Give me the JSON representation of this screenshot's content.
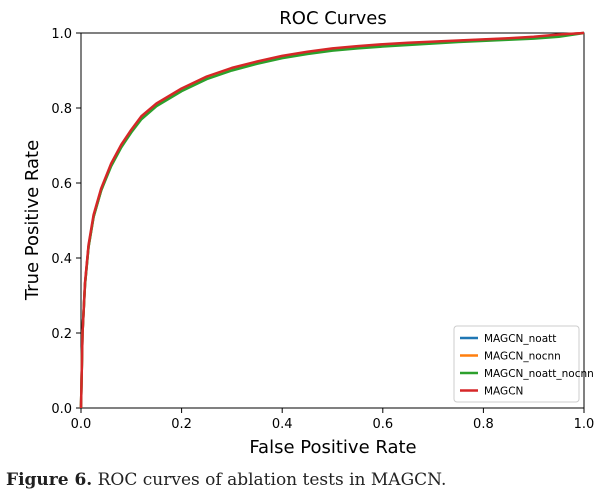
{
  "chart_data": {
    "type": "line",
    "title": "ROC Curves",
    "xlabel": "False Positive Rate",
    "ylabel": "True Positive Rate",
    "xlim": [
      0.0,
      1.0
    ],
    "ylim": [
      0.0,
      1.0
    ],
    "xticks": [
      "0.0",
      "0.2",
      "0.4",
      "0.6",
      "0.8",
      "1.0"
    ],
    "yticks": [
      "0.0",
      "0.2",
      "0.4",
      "0.6",
      "0.8",
      "1.0"
    ],
    "grid": false,
    "legend_position": "bottom-right",
    "series": [
      {
        "name": "MAGCN_noatt",
        "color": "#1f77b4",
        "x": [
          0,
          0.003,
          0.008,
          0.015,
          0.025,
          0.04,
          0.06,
          0.08,
          0.1,
          0.12,
          0.15,
          0.2,
          0.25,
          0.3,
          0.35,
          0.4,
          0.45,
          0.5,
          0.55,
          0.6,
          0.65,
          0.7,
          0.75,
          0.8,
          0.85,
          0.9,
          0.95,
          1.0
        ],
        "y": [
          0,
          0.2,
          0.33,
          0.43,
          0.51,
          0.58,
          0.65,
          0.7,
          0.74,
          0.775,
          0.81,
          0.85,
          0.882,
          0.905,
          0.922,
          0.937,
          0.948,
          0.957,
          0.963,
          0.968,
          0.972,
          0.976,
          0.979,
          0.982,
          0.985,
          0.989,
          0.995,
          1.0
        ]
      },
      {
        "name": "MAGCN_nocnn",
        "color": "#ff7f0e",
        "x": [
          0,
          0.003,
          0.008,
          0.015,
          0.025,
          0.04,
          0.06,
          0.08,
          0.1,
          0.12,
          0.15,
          0.2,
          0.25,
          0.3,
          0.35,
          0.4,
          0.45,
          0.5,
          0.55,
          0.6,
          0.65,
          0.7,
          0.75,
          0.8,
          0.85,
          0.9,
          0.95,
          1.0
        ],
        "y": [
          0,
          0.2,
          0.33,
          0.43,
          0.51,
          0.58,
          0.65,
          0.7,
          0.74,
          0.775,
          0.81,
          0.85,
          0.882,
          0.905,
          0.922,
          0.937,
          0.948,
          0.957,
          0.963,
          0.968,
          0.972,
          0.976,
          0.979,
          0.982,
          0.985,
          0.989,
          0.995,
          1.0
        ]
      },
      {
        "name": "MAGCN_noatt_nocnn",
        "color": "#2ca02c",
        "x": [
          0,
          0.003,
          0.008,
          0.015,
          0.025,
          0.04,
          0.06,
          0.08,
          0.1,
          0.12,
          0.15,
          0.2,
          0.25,
          0.3,
          0.35,
          0.4,
          0.45,
          0.5,
          0.55,
          0.6,
          0.65,
          0.7,
          0.75,
          0.8,
          0.85,
          0.9,
          0.95,
          1.0
        ],
        "y": [
          0,
          0.2,
          0.33,
          0.43,
          0.51,
          0.58,
          0.645,
          0.695,
          0.735,
          0.77,
          0.805,
          0.845,
          0.877,
          0.9,
          0.918,
          0.933,
          0.944,
          0.953,
          0.959,
          0.964,
          0.968,
          0.972,
          0.976,
          0.979,
          0.982,
          0.985,
          0.99,
          1.0
        ]
      },
      {
        "name": "MAGCN",
        "color": "#d62728",
        "x": [
          0,
          0.003,
          0.008,
          0.015,
          0.025,
          0.04,
          0.06,
          0.08,
          0.1,
          0.12,
          0.15,
          0.2,
          0.25,
          0.3,
          0.35,
          0.4,
          0.45,
          0.5,
          0.55,
          0.6,
          0.65,
          0.7,
          0.75,
          0.8,
          0.85,
          0.9,
          0.95,
          1.0
        ],
        "y": [
          0,
          0.2,
          0.335,
          0.435,
          0.515,
          0.585,
          0.652,
          0.702,
          0.742,
          0.778,
          0.812,
          0.852,
          0.884,
          0.907,
          0.924,
          0.939,
          0.95,
          0.959,
          0.965,
          0.97,
          0.974,
          0.977,
          0.98,
          0.983,
          0.986,
          0.99,
          0.996,
          1.0
        ]
      }
    ]
  },
  "caption": {
    "label": "Figure 6.",
    "text": " ROC curves of ablation tests in MAGCN."
  }
}
